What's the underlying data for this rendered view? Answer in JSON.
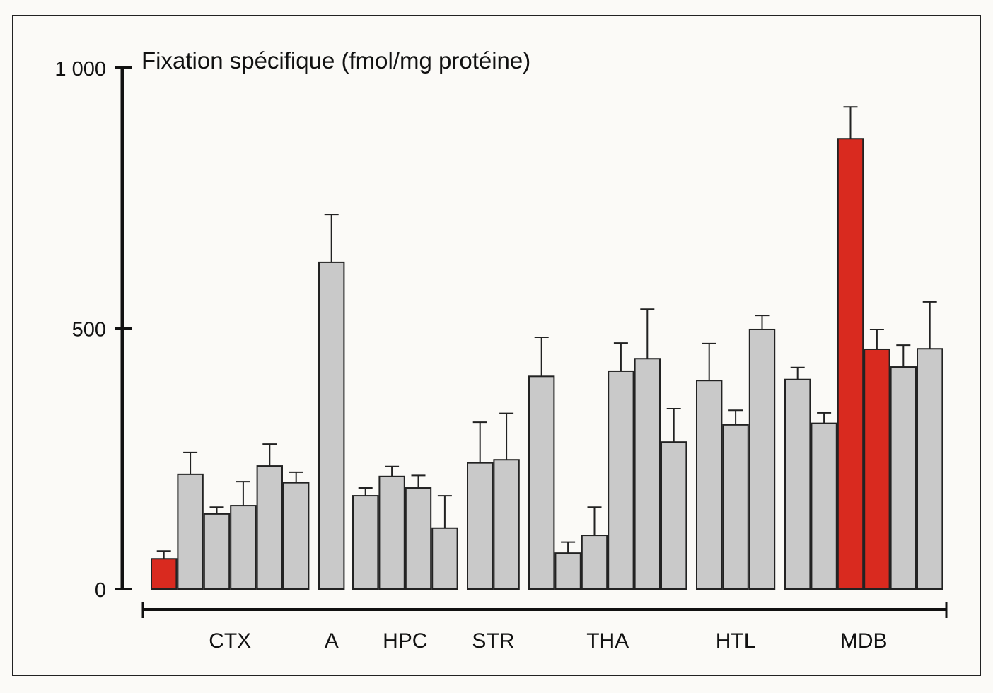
{
  "chart_data": {
    "type": "bar",
    "title": "",
    "ylabel": "Fixation spécifique (fmol/mg protéine)",
    "xlabel": "",
    "ylim": [
      0,
      1000
    ],
    "yticks": [
      0,
      500,
      1000
    ],
    "ytick_labels": [
      "0",
      "500",
      "1 000"
    ],
    "grid": false,
    "colors": {
      "highlight": "#d92a1f",
      "normal": "#c9c9c9",
      "outline": "#222222"
    },
    "groups": [
      {
        "label": "CTX",
        "bars": [
          {
            "value": 58,
            "error": 15,
            "highlight": true
          },
          {
            "value": 220,
            "error": 42
          },
          {
            "value": 144,
            "error": 13
          },
          {
            "value": 160,
            "error": 46
          },
          {
            "value": 236,
            "error": 42
          },
          {
            "value": 204,
            "error": 20
          }
        ]
      },
      {
        "label": "A",
        "bars": [
          {
            "value": 627,
            "error": 92
          }
        ]
      },
      {
        "label": "HPC",
        "bars": [
          {
            "value": 179,
            "error": 15
          },
          {
            "value": 216,
            "error": 19
          },
          {
            "value": 194,
            "error": 24
          },
          {
            "value": 117,
            "error": 62
          }
        ]
      },
      {
        "label": "STR",
        "bars": [
          {
            "value": 242,
            "error": 78
          },
          {
            "value": 248,
            "error": 89
          }
        ]
      },
      {
        "label": "THA",
        "bars": [
          {
            "value": 408,
            "error": 75
          },
          {
            "value": 69,
            "error": 21
          },
          {
            "value": 103,
            "error": 54
          },
          {
            "value": 418,
            "error": 54
          },
          {
            "value": 442,
            "error": 95
          },
          {
            "value": 282,
            "error": 64
          }
        ]
      },
      {
        "label": "HTL",
        "bars": [
          {
            "value": 400,
            "error": 71
          },
          {
            "value": 315,
            "error": 28
          },
          {
            "value": 498,
            "error": 27
          }
        ]
      },
      {
        "label": "MDB",
        "bars": [
          {
            "value": 402,
            "error": 23
          },
          {
            "value": 318,
            "error": 20
          },
          {
            "value": 864,
            "error": 61,
            "highlight": true
          },
          {
            "value": 460,
            "error": 38,
            "highlight": true
          },
          {
            "value": 426,
            "error": 42
          },
          {
            "value": 461,
            "error": 90
          }
        ]
      }
    ]
  }
}
